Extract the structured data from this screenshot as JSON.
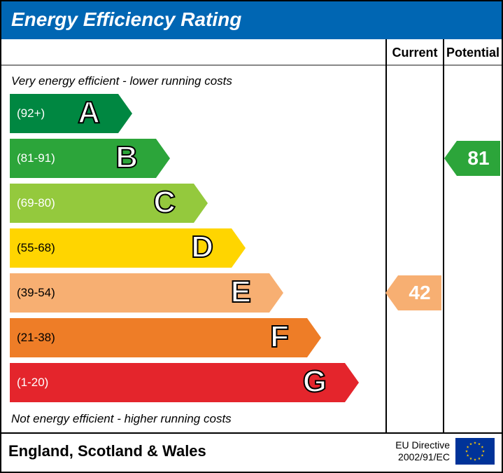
{
  "title": "Energy Efficiency Rating",
  "header_bg": "#0066b3",
  "columns": {
    "current": "Current",
    "potential": "Potential"
  },
  "top_note": "Very energy efficient - lower running costs",
  "bottom_note": "Not energy efficient - higher running costs",
  "band_height": 56,
  "band_gap": 8,
  "base_width": 155,
  "width_step": 54,
  "arrow_width": 20,
  "label_fontsize": 44,
  "range_fontsize": 17,
  "bands": [
    {
      "letter": "A",
      "range": "(92+)",
      "color": "#008741",
      "text": "#ffffff"
    },
    {
      "letter": "B",
      "range": "(81-91)",
      "color": "#2ca53a",
      "text": "#ffffff"
    },
    {
      "letter": "C",
      "range": "(69-80)",
      "color": "#94c93d",
      "text": "#ffffff"
    },
    {
      "letter": "D",
      "range": "(55-68)",
      "color": "#ffd500",
      "text": "#000000"
    },
    {
      "letter": "E",
      "range": "(39-54)",
      "color": "#f7af72",
      "text": "#000000"
    },
    {
      "letter": "F",
      "range": "(21-38)",
      "color": "#ee7d27",
      "text": "#000000"
    },
    {
      "letter": "G",
      "range": "(1-20)",
      "color": "#e4252c",
      "text": "#ffffff"
    }
  ],
  "current": {
    "value": 42,
    "band_index": 4,
    "color": "#f7af72",
    "text_color": "#ffffff"
  },
  "potential": {
    "value": 81,
    "band_index": 1,
    "color": "#2ca53a",
    "text_color": "#ffffff"
  },
  "footer": {
    "region": "England, Scotland & Wales",
    "directive_line1": "EU Directive",
    "directive_line2": "2002/91/EC",
    "flag_bg": "#003399",
    "star_color": "#ffcc00"
  },
  "background_color": "#ffffff"
}
